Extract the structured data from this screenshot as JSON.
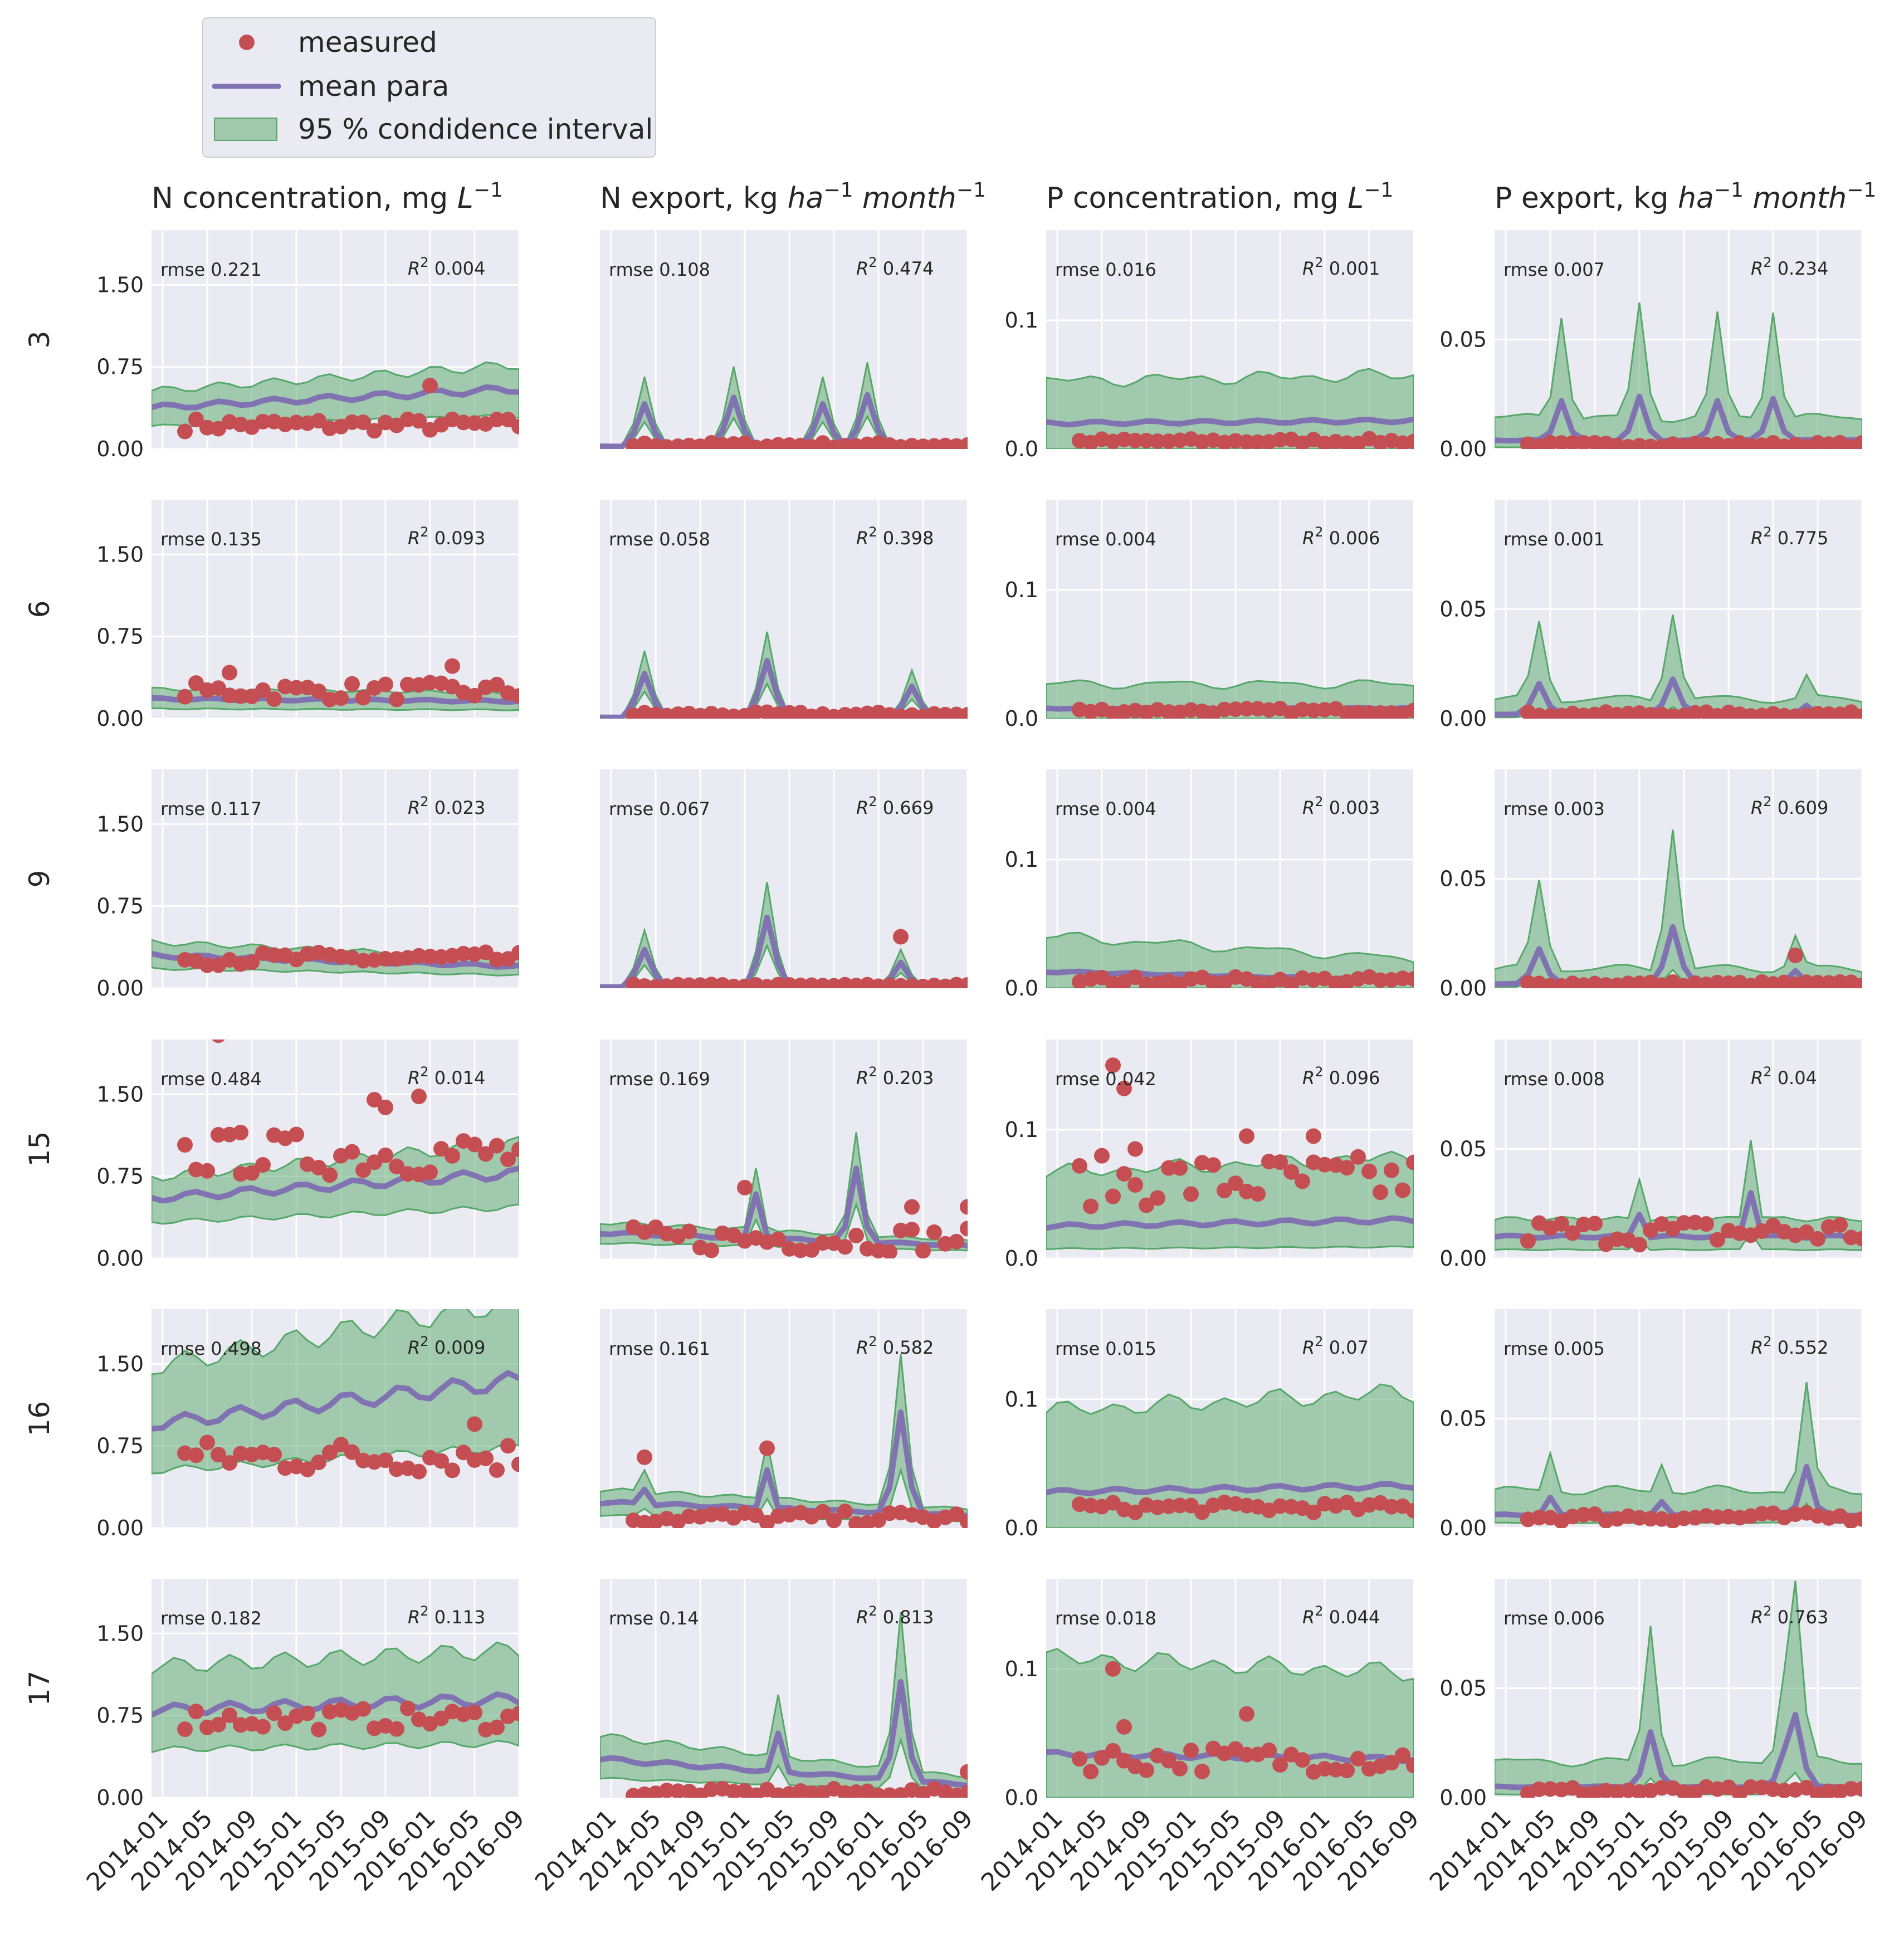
{
  "chart_data": {
    "type": "line",
    "legend": {
      "position": "top-left",
      "items": [
        {
          "label": "measured",
          "kind": "marker",
          "color": "#c44e52"
        },
        {
          "label": "mean para",
          "kind": "line",
          "color": "#8172b2"
        },
        {
          "label": "95 % condidence interval",
          "kind": "patch",
          "color": "#55a868"
        }
      ]
    },
    "colors": {
      "background": "#eaeaf2",
      "grid": "#ffffff",
      "measured": "#c44e52",
      "mean": "#8172b2",
      "band": "#55a868"
    },
    "columns": [
      {
        "title": "N concentration, mg",
        "unit_base": "L",
        "unit_exp": "−1",
        "unit_suffix": "",
        "ylim": [
          0,
          2.0
        ],
        "yticks": [
          "0.00",
          "0.75",
          "1.50"
        ],
        "ytick_values": [
          0,
          0.75,
          1.5
        ]
      },
      {
        "title": "N export, kg",
        "unit_base": "ha",
        "unit_exp": "−1",
        "unit_suffix": "month",
        "unit_suffix_exp": "−1",
        "ylim": [
          0,
          1.7
        ],
        "yticks": [],
        "ytick_values": []
      },
      {
        "title": "P concentration, mg",
        "unit_base": "L",
        "unit_exp": "−1",
        "unit_suffix": "",
        "ylim": [
          0,
          0.17
        ],
        "yticks": [
          "0.0",
          "0.1"
        ],
        "ytick_values": [
          0,
          0.1
        ]
      },
      {
        "title": "P export, kg",
        "unit_base": "ha",
        "unit_exp": "−1",
        "unit_suffix": "month",
        "unit_suffix_exp": "−1",
        "ylim": [
          0,
          0.1
        ],
        "yticks": [
          "0.00",
          "0.05"
        ],
        "ytick_values": [
          0,
          0.05
        ]
      }
    ],
    "row_labels": [
      "3",
      "6",
      "9",
      "15",
      "16",
      "17"
    ],
    "x_months": 34,
    "xtick_labels": [
      "2014-01",
      "2014-05",
      "2014-09",
      "2015-01",
      "2015-05",
      "2015-09",
      "2016-01",
      "2016-05",
      "2016-09"
    ],
    "xtick_month_index": [
      1,
      5,
      9,
      13,
      17,
      21,
      25,
      29,
      33
    ],
    "stat_labels": {
      "rmse": "rmse",
      "r2": "R",
      "r2_exp": "2"
    },
    "panels": [
      [
        {
          "rmse": "0.221",
          "r2": "0.004",
          "mean_start": 0.38,
          "mean_end": 0.55,
          "low_f": 0.55,
          "high_f": 1.4,
          "peaks": [],
          "meas_level": 0.22,
          "meas_var": 0.06,
          "meas_extra": [
            [
              25,
              0.58
            ]
          ]
        },
        {
          "rmse": "0.108",
          "r2": "0.474",
          "mean_start": 0.02,
          "mean_end": 0.02,
          "low_f": 0.6,
          "high_f": 1.6,
          "peaks": [
            [
              4,
              0.35
            ],
            [
              12,
              0.4
            ],
            [
              20,
              0.35
            ],
            [
              24,
              0.42
            ]
          ],
          "meas_level": 0.03,
          "meas_var": 0.02,
          "meas_extra": []
        },
        {
          "rmse": "0.016",
          "r2": "0.001",
          "mean_start": 0.02,
          "mean_end": 0.022,
          "low_f": 0.0,
          "high_f": 2.3,
          "peaks": [],
          "meas_level": 0.006,
          "meas_var": 0.002,
          "meas_extra": []
        },
        {
          "rmse": "0.007",
          "r2": "0.234",
          "mean_start": 0.004,
          "mean_end": 0.004,
          "low_f": 0.2,
          "high_f": 2.6,
          "peaks": [
            [
              6,
              0.022
            ],
            [
              13,
              0.024
            ],
            [
              20,
              0.022
            ],
            [
              25,
              0.023
            ]
          ],
          "meas_level": 0.002,
          "meas_var": 0.001,
          "meas_extra": []
        }
      ],
      [
        {
          "rmse": "0.135",
          "r2": "0.093",
          "mean_start": 0.18,
          "mean_end": 0.16,
          "low_f": 0.5,
          "high_f": 1.5,
          "peaks": [],
          "meas_level": 0.25,
          "meas_var": 0.08,
          "meas_extra": [
            [
              7,
              0.42
            ],
            [
              27,
              0.48
            ]
          ]
        },
        {
          "rmse": "0.058",
          "r2": "0.398",
          "mean_start": 0.01,
          "mean_end": 0.01,
          "low_f": 0.6,
          "high_f": 1.5,
          "peaks": [
            [
              4,
              0.35
            ],
            [
              15,
              0.45
            ],
            [
              28,
              0.25
            ]
          ],
          "meas_level": 0.03,
          "meas_var": 0.02,
          "meas_extra": []
        },
        {
          "rmse": "0.004",
          "r2": "0.006",
          "mean_start": 0.008,
          "mean_end": 0.008,
          "low_f": 0.0,
          "high_f": 2.5,
          "peaks": [],
          "meas_level": 0.006,
          "meas_var": 0.002,
          "meas_extra": []
        },
        {
          "rmse": "0.001",
          "r2": "0.775",
          "mean_start": 0.002,
          "mean_end": 0.002,
          "low_f": 0.3,
          "high_f": 2.5,
          "peaks": [
            [
              4,
              0.016
            ],
            [
              16,
              0.018
            ],
            [
              28,
              0.006
            ]
          ],
          "meas_level": 0.002,
          "meas_var": 0.001,
          "meas_extra": []
        }
      ],
      [
        {
          "rmse": "0.117",
          "r2": "0.023",
          "mean_start": 0.3,
          "mean_end": 0.2,
          "low_f": 0.6,
          "high_f": 1.4,
          "peaks": [],
          "meas_level": 0.27,
          "meas_var": 0.06,
          "meas_extra": []
        },
        {
          "rmse": "0.067",
          "r2": "0.669",
          "mean_start": 0.01,
          "mean_end": 0.01,
          "low_f": 0.6,
          "high_f": 1.5,
          "peaks": [
            [
              4,
              0.3
            ],
            [
              15,
              0.55
            ],
            [
              27,
              0.2
            ]
          ],
          "meas_level": 0.02,
          "meas_var": 0.01,
          "meas_extra": [
            [
              27,
              0.4
            ]
          ]
        },
        {
          "rmse": "0.004",
          "r2": "0.003",
          "mean_start": 0.013,
          "mean_end": 0.006,
          "low_f": 0.0,
          "high_f": 2.6,
          "peaks": [],
          "meas_level": 0.006,
          "meas_var": 0.003,
          "meas_extra": []
        },
        {
          "rmse": "0.003",
          "r2": "0.609",
          "mean_start": 0.002,
          "mean_end": 0.002,
          "low_f": 0.3,
          "high_f": 2.5,
          "peaks": [
            [
              4,
              0.018
            ],
            [
              16,
              0.028
            ],
            [
              27,
              0.008
            ]
          ],
          "meas_level": 0.002,
          "meas_var": 0.001,
          "meas_extra": [
            [
              27,
              0.015
            ]
          ]
        }
      ],
      [
        {
          "rmse": "0.484",
          "r2": "0.014",
          "mean_start": 0.55,
          "mean_end": 0.78,
          "low_f": 0.6,
          "high_f": 1.35,
          "peaks": [],
          "meas_level": 0.95,
          "meas_var": 0.2,
          "meas_extra": [
            [
              6,
              2.05
            ],
            [
              8,
              1.15
            ],
            [
              20,
              1.45
            ],
            [
              21,
              1.38
            ],
            [
              24,
              1.48
            ]
          ]
        },
        {
          "rmse": "0.169",
          "r2": "0.203",
          "mean_start": 0.2,
          "mean_end": 0.1,
          "low_f": 0.6,
          "high_f": 1.4,
          "peaks": [
            [
              14,
              0.5
            ],
            [
              23,
              0.7
            ]
          ],
          "meas_level": 0.15,
          "meas_var": 0.1,
          "meas_extra": [
            [
              13,
              0.55
            ],
            [
              28,
              0.4
            ],
            [
              33,
              0.4
            ]
          ]
        },
        {
          "rmse": "0.042",
          "r2": "0.096",
          "mean_start": 0.025,
          "mean_end": 0.03,
          "low_f": 0.3,
          "high_f": 2.4,
          "peaks": [],
          "meas_level": 0.06,
          "meas_var": 0.02,
          "meas_extra": [
            [
              6,
              0.15
            ],
            [
              7,
              0.132
            ],
            [
              8,
              0.085
            ],
            [
              18,
              0.095
            ],
            [
              24,
              0.095
            ]
          ]
        },
        {
          "rmse": "0.008",
          "r2": "0.04",
          "mean_start": 0.01,
          "mean_end": 0.01,
          "low_f": 0.4,
          "high_f": 1.8,
          "peaks": [
            [
              13,
              0.02
            ],
            [
              23,
              0.03
            ]
          ],
          "meas_level": 0.012,
          "meas_var": 0.006,
          "meas_extra": []
        }
      ],
      [
        {
          "rmse": "0.498",
          "r2": "0.009",
          "mean_start": 0.95,
          "mean_end": 1.35,
          "low_f": 0.55,
          "high_f": 1.55,
          "peaks": [],
          "meas_level": 0.65,
          "meas_var": 0.15,
          "meas_extra": [
            [
              29,
              0.95
            ]
          ]
        },
        {
          "rmse": "0.161",
          "r2": "0.582",
          "mean_start": 0.2,
          "mean_end": 0.1,
          "low_f": 0.5,
          "high_f": 1.5,
          "peaks": [
            [
              4,
              0.3
            ],
            [
              15,
              0.45
            ],
            [
              27,
              0.9
            ]
          ],
          "meas_level": 0.08,
          "meas_var": 0.05,
          "meas_extra": [
            [
              4,
              0.55
            ],
            [
              15,
              0.62
            ]
          ]
        },
        {
          "rmse": "0.015",
          "r2": "0.07",
          "mean_start": 0.028,
          "mean_end": 0.033,
          "low_f": 0.0,
          "high_f": 3.0,
          "peaks": [],
          "meas_level": 0.016,
          "meas_var": 0.004,
          "meas_extra": []
        },
        {
          "rmse": "0.005",
          "r2": "0.552",
          "mean_start": 0.006,
          "mean_end": 0.006,
          "low_f": 0.4,
          "high_f": 2.2,
          "peaks": [
            [
              5,
              0.014
            ],
            [
              15,
              0.012
            ],
            [
              28,
              0.028
            ]
          ],
          "meas_level": 0.005,
          "meas_var": 0.002,
          "meas_extra": []
        }
      ],
      [
        {
          "rmse": "0.182",
          "r2": "0.113",
          "mean_start": 0.8,
          "mean_end": 0.9,
          "low_f": 0.55,
          "high_f": 1.5,
          "peaks": [],
          "meas_level": 0.72,
          "meas_var": 0.1,
          "meas_extra": []
        },
        {
          "rmse": "0.14",
          "r2": "0.813",
          "mean_start": 0.3,
          "mean_end": 0.1,
          "low_f": 0.5,
          "high_f": 1.6,
          "peaks": [
            [
              16,
              0.5
            ],
            [
              27,
              0.9
            ]
          ],
          "meas_level": 0.04,
          "meas_var": 0.03,
          "meas_extra": [
            [
              33,
              0.2
            ]
          ]
        },
        {
          "rmse": "0.018",
          "r2": "0.044",
          "mean_start": 0.034,
          "mean_end": 0.03,
          "low_f": 0.0,
          "high_f": 3.0,
          "peaks": [],
          "meas_level": 0.03,
          "meas_var": 0.01,
          "meas_extra": [
            [
              6,
              0.1
            ],
            [
              7,
              0.055
            ],
            [
              18,
              0.065
            ]
          ]
        },
        {
          "rmse": "0.006",
          "r2": "0.763",
          "mean_start": 0.005,
          "mean_end": 0.005,
          "low_f": 0.3,
          "high_f": 2.5,
          "peaks": [
            [
              14,
              0.03
            ],
            [
              26,
              0.022
            ],
            [
              27,
              0.038
            ]
          ],
          "meas_level": 0.003,
          "meas_var": 0.002,
          "meas_extra": []
        }
      ]
    ]
  }
}
